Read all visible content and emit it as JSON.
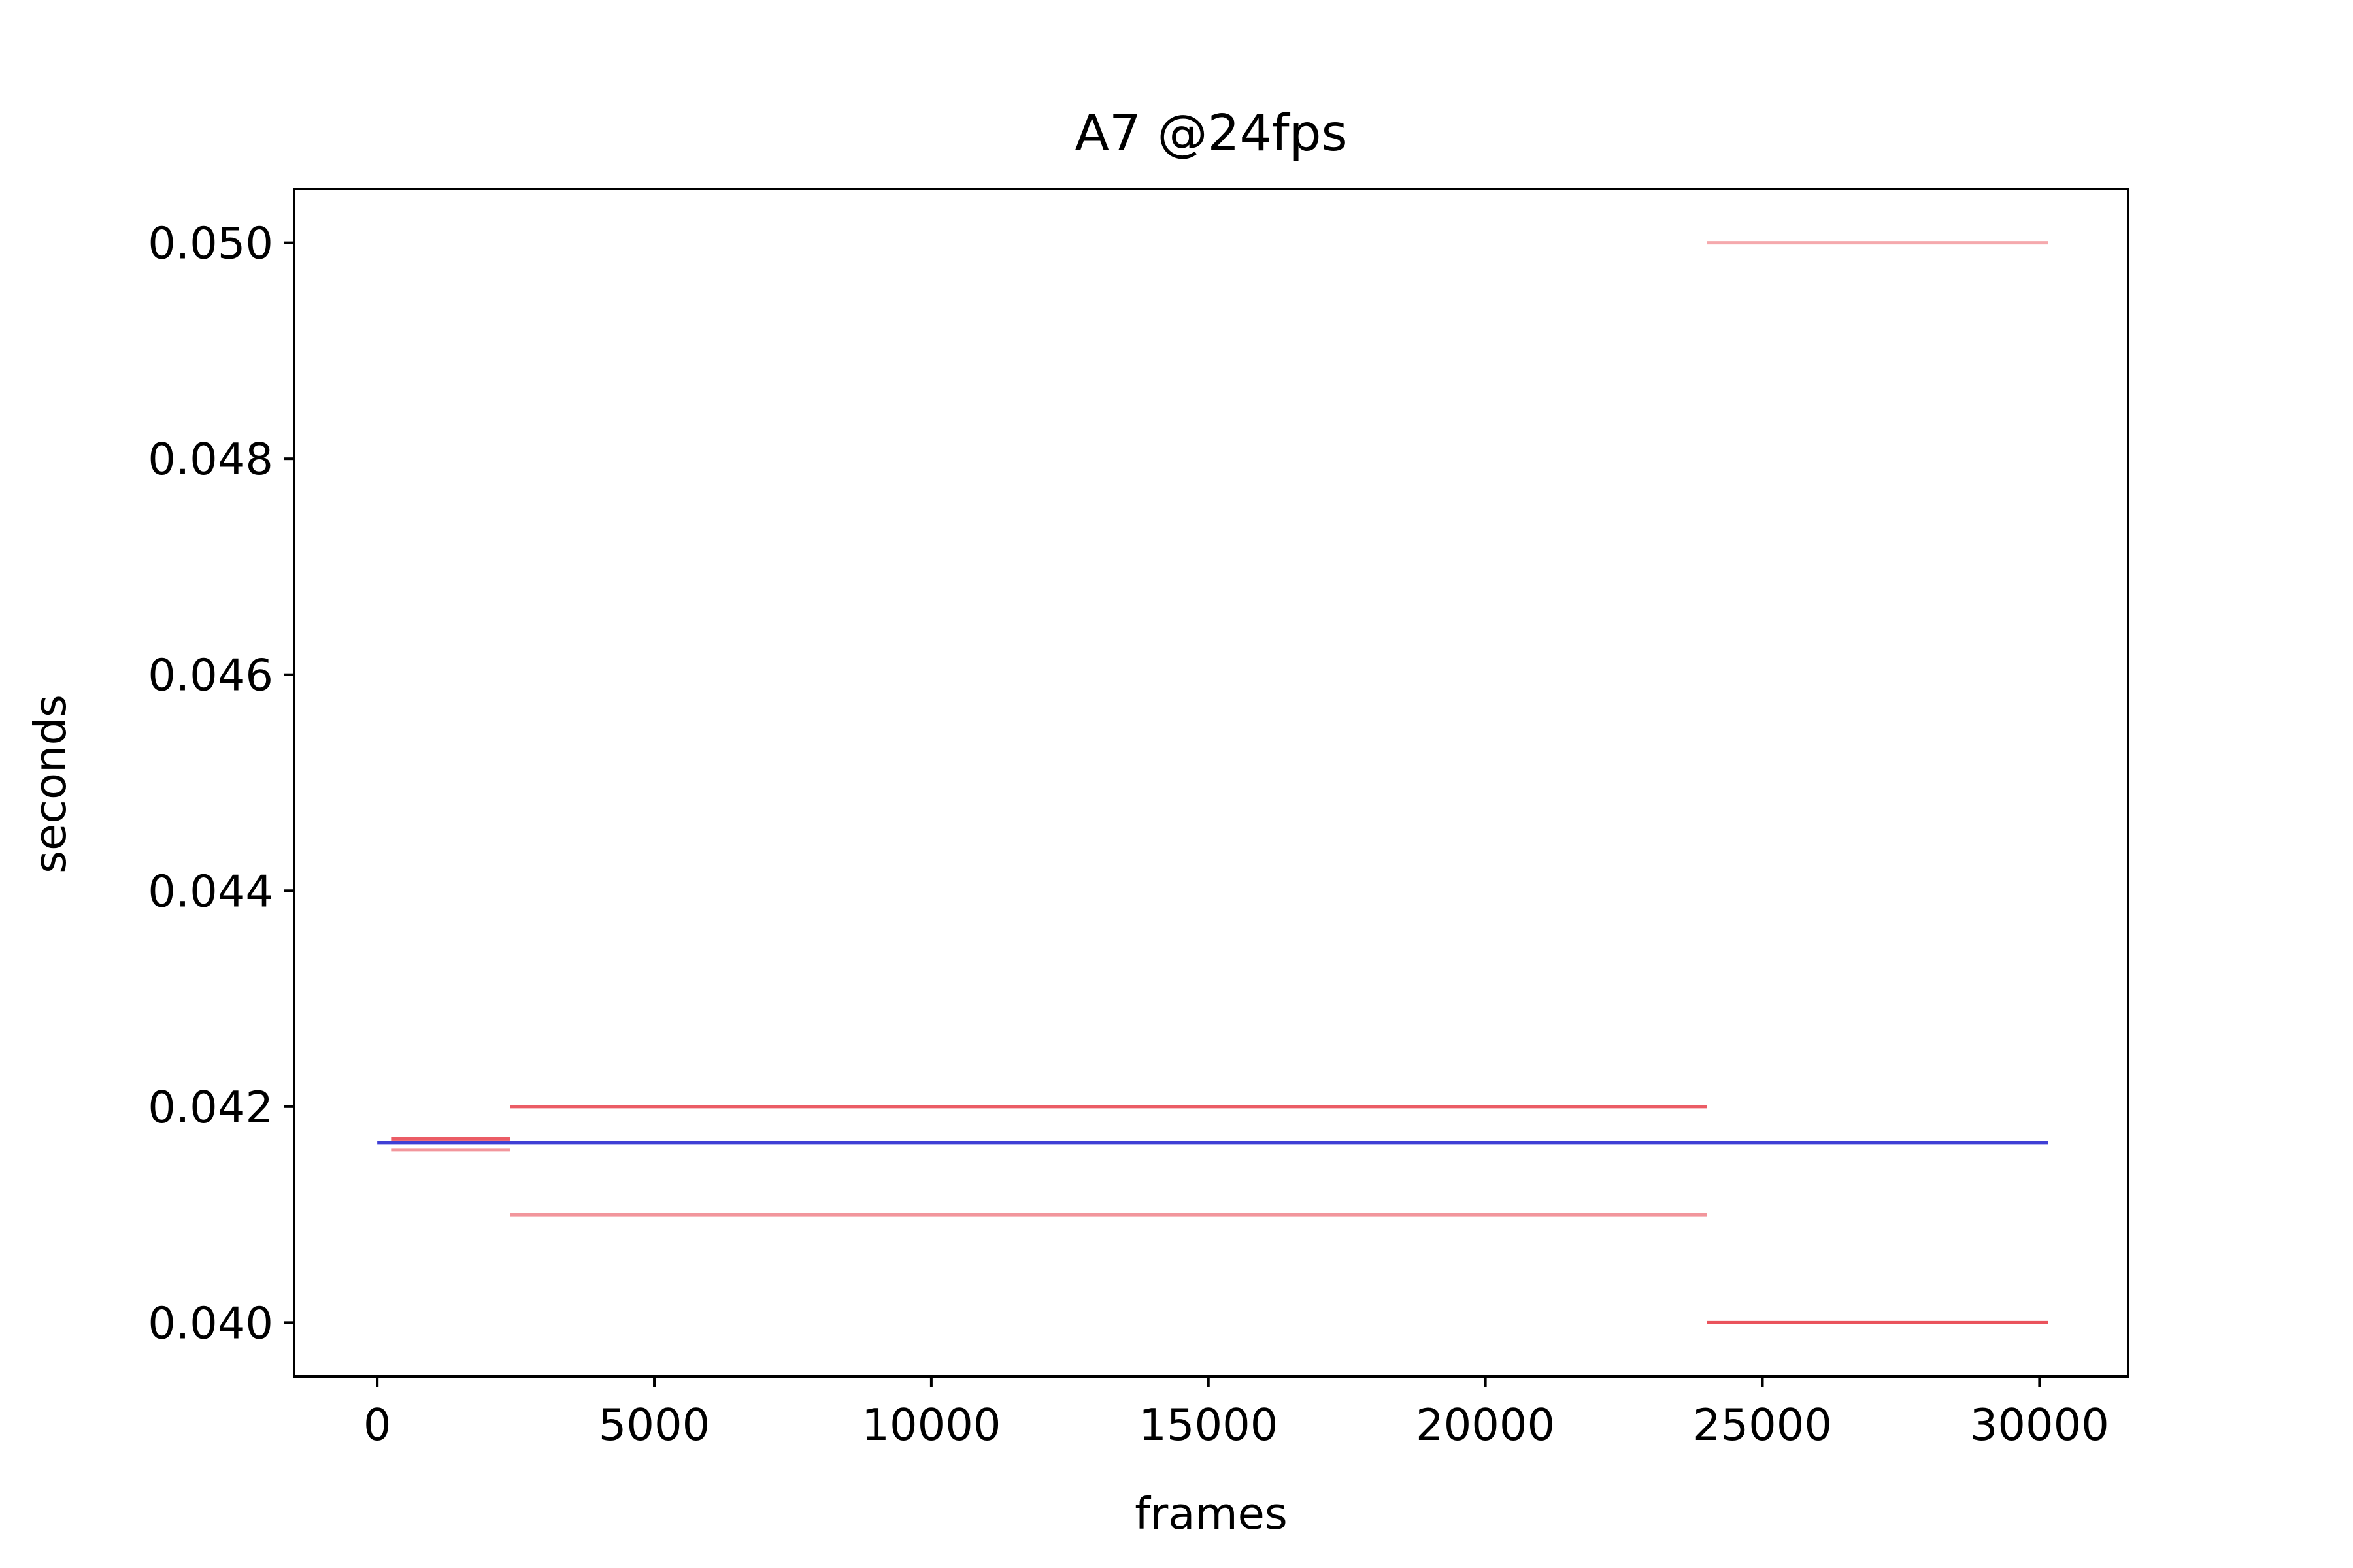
{
  "chart_data": {
    "type": "line",
    "title": "A7 @24fps",
    "xlabel": "frames",
    "ylabel": "seconds",
    "xlim": [
      -1500,
      31600
    ],
    "ylim": [
      0.0395,
      0.0505
    ],
    "xticks": [
      0,
      5000,
      10000,
      15000,
      20000,
      25000,
      30000
    ],
    "xtick_labels": [
      "0",
      "5000",
      "10000",
      "15000",
      "20000",
      "25000",
      "30000"
    ],
    "yticks": [
      0.04,
      0.042,
      0.044,
      0.046,
      0.048,
      0.05
    ],
    "ytick_labels": [
      "0.040",
      "0.042",
      "0.044",
      "0.046",
      "0.048",
      "0.050"
    ],
    "grid": false,
    "series": [
      {
        "color": "#e8404a",
        "segments": [
          {
            "x": [
              250,
              2400
            ],
            "y": 0.0417,
            "opacity": 0.85
          },
          {
            "x": [
              250,
              2400
            ],
            "y": 0.0416,
            "opacity": 0.55
          },
          {
            "x": [
              2400,
              24000
            ],
            "y": 0.042,
            "opacity": 0.85
          },
          {
            "x": [
              2400,
              24000
            ],
            "y": 0.041,
            "opacity": 0.55
          },
          {
            "x": [
              24000,
              30150
            ],
            "y": 0.05,
            "opacity": 0.45
          },
          {
            "x": [
              24000,
              30150
            ],
            "y": 0.04,
            "opacity": 0.9
          }
        ]
      },
      {
        "color": "#2a2ad0",
        "segments": [
          {
            "x": [
              0,
              30150
            ],
            "y": 0.041667,
            "opacity": 0.9
          }
        ]
      }
    ]
  }
}
